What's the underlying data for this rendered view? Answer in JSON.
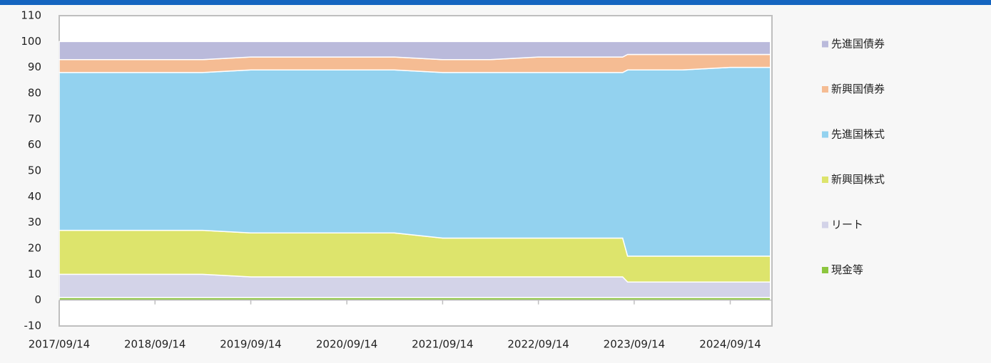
{
  "chart_data": {
    "type": "stacked_area",
    "x": [
      "2017/09/14",
      "2018/03/14",
      "2018/09/14",
      "2019/03/14",
      "2019/09/14",
      "2020/03/14",
      "2020/09/14",
      "2021/03/14",
      "2021/09/14",
      "2022/03/14",
      "2022/09/14",
      "2023/03/14",
      "2023/08/01",
      "2023/08/20",
      "2024/03/14",
      "2024/09/14",
      "2025/02/14"
    ],
    "series": [
      {
        "name": "現金等",
        "color": "#8dc63f",
        "values": [
          1,
          1,
          1,
          1,
          1,
          1,
          1,
          1,
          1,
          1,
          1,
          1,
          1,
          1,
          1,
          1,
          1
        ]
      },
      {
        "name": "リート",
        "color": "#d3d3e8",
        "values": [
          9,
          9,
          9,
          9,
          8,
          8,
          8,
          8,
          8,
          8,
          8,
          8,
          8,
          6,
          6,
          6,
          6
        ]
      },
      {
        "name": "新興国株式",
        "color": "#dde46c",
        "values": [
          17,
          17,
          17,
          17,
          17,
          17,
          17,
          17,
          15,
          15,
          15,
          15,
          15,
          10,
          10,
          10,
          10
        ]
      },
      {
        "name": "先進国株式",
        "color": "#93d2ef",
        "values": [
          61,
          61,
          61,
          61,
          63,
          63,
          63,
          63,
          64,
          64,
          64,
          64,
          64,
          72,
          72,
          73,
          73
        ]
      },
      {
        "name": "新興国債券",
        "color": "#f5bc93",
        "values": [
          5,
          5,
          5,
          5,
          5,
          5,
          5,
          5,
          5,
          5,
          6,
          6,
          6,
          6,
          6,
          5,
          5
        ]
      },
      {
        "name": "先進国債券",
        "color": "#babadb",
        "values": [
          7,
          7,
          7,
          7,
          6,
          6,
          6,
          6,
          7,
          7,
          6,
          6,
          6,
          5,
          5,
          5,
          5
        ]
      }
    ],
    "xlim": [
      "2017/09/14",
      "2025/02/20"
    ],
    "xticks": [
      "2017/09/14",
      "2018/09/14",
      "2019/09/14",
      "2020/09/14",
      "2021/09/14",
      "2022/09/14",
      "2023/09/14",
      "2024/09/14"
    ],
    "ylim": [
      -10,
      110
    ],
    "yticks": [
      -10,
      0,
      10,
      20,
      30,
      40,
      50,
      60,
      70,
      80,
      90,
      100,
      110
    ],
    "legend": "right"
  }
}
